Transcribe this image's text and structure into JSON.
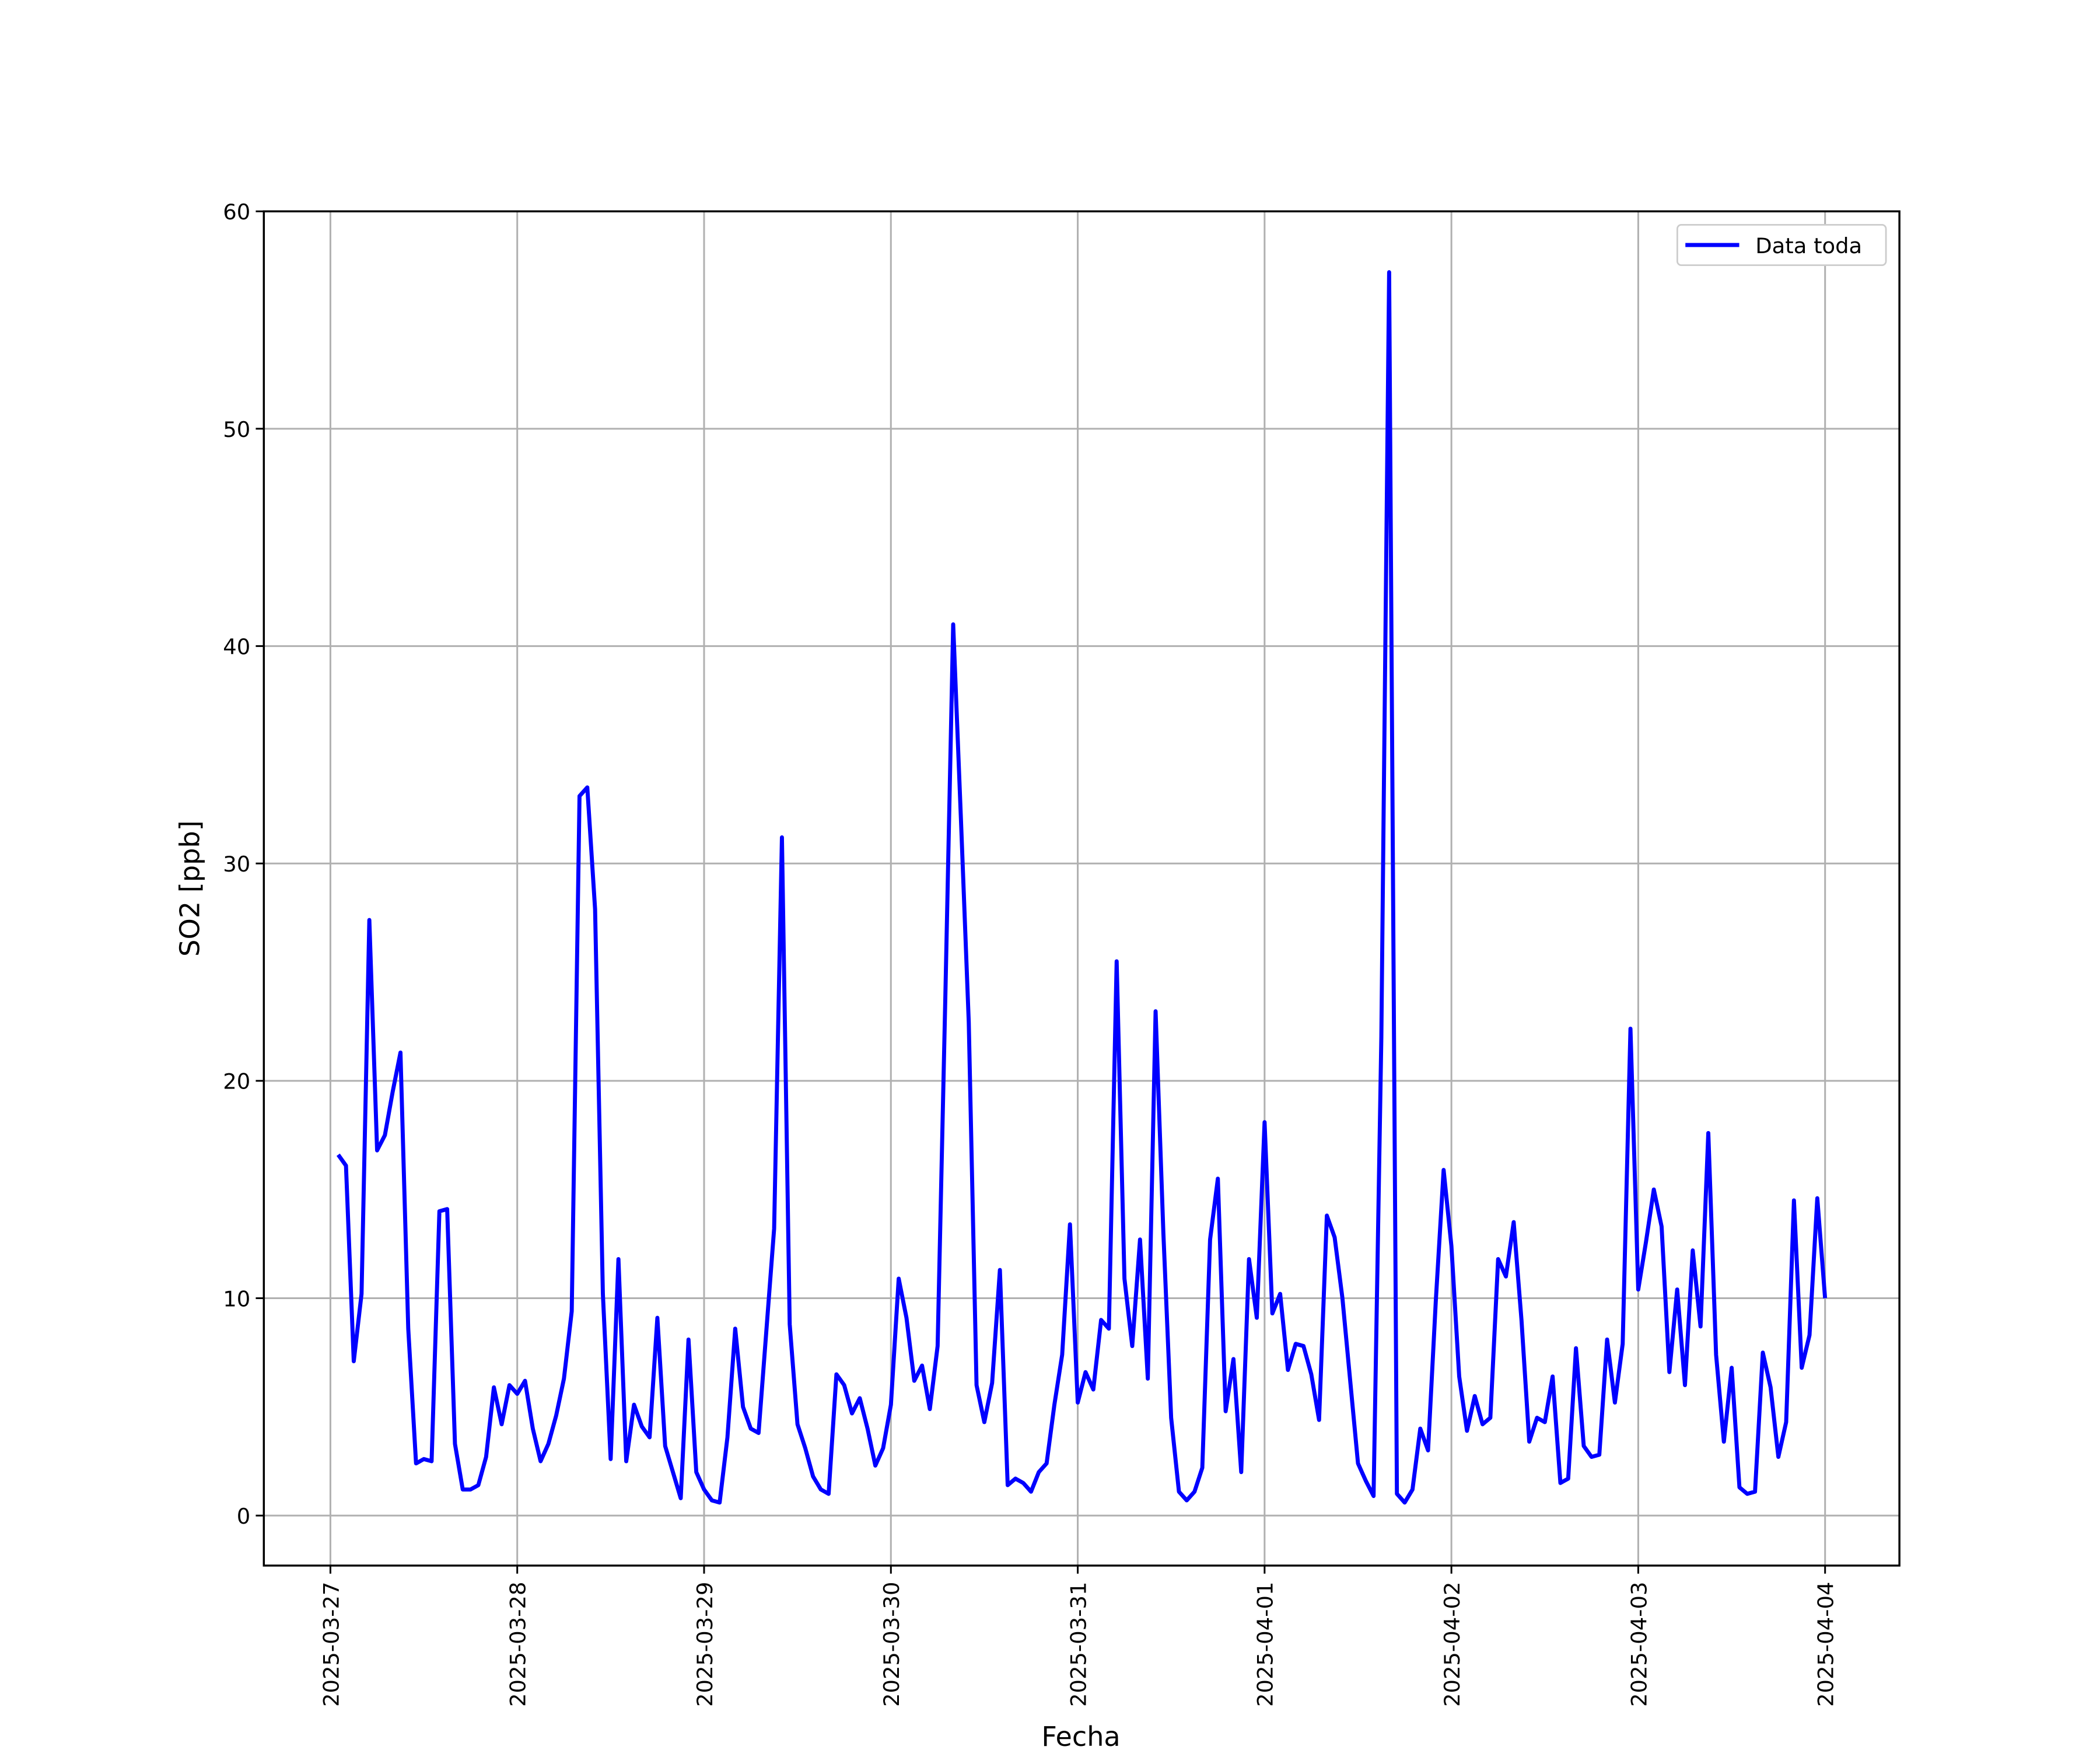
{
  "chart_data": {
    "type": "line",
    "xlabel": "Fecha",
    "ylabel": "SO2 [ppb]",
    "x": [
      "2025-03-27T01:00",
      "2025-03-27T02:00",
      "2025-03-27T03:00",
      "2025-03-27T04:00",
      "2025-03-27T05:00",
      "2025-03-27T06:00",
      "2025-03-27T07:00",
      "2025-03-27T08:00",
      "2025-03-27T09:00",
      "2025-03-27T10:00",
      "2025-03-27T11:00",
      "2025-03-27T12:00",
      "2025-03-27T13:00",
      "2025-03-27T14:00",
      "2025-03-27T15:00",
      "2025-03-27T16:00",
      "2025-03-27T17:00",
      "2025-03-27T18:00",
      "2025-03-27T19:00",
      "2025-03-27T20:00",
      "2025-03-27T21:00",
      "2025-03-27T22:00",
      "2025-03-27T23:00",
      "2025-03-28T00:00",
      "2025-03-28T01:00",
      "2025-03-28T02:00",
      "2025-03-28T03:00",
      "2025-03-28T04:00",
      "2025-03-28T05:00",
      "2025-03-28T06:00",
      "2025-03-28T07:00",
      "2025-03-28T08:00",
      "2025-03-28T09:00",
      "2025-03-28T10:00",
      "2025-03-28T11:00",
      "2025-03-28T12:00",
      "2025-03-28T13:00",
      "2025-03-28T14:00",
      "2025-03-28T15:00",
      "2025-03-28T16:00",
      "2025-03-28T17:00",
      "2025-03-28T18:00",
      "2025-03-28T19:00",
      "2025-03-28T20:00",
      "2025-03-28T21:00",
      "2025-03-28T22:00",
      "2025-03-28T23:00",
      "2025-03-29T00:00",
      "2025-03-29T01:00",
      "2025-03-29T02:00",
      "2025-03-29T03:00",
      "2025-03-29T04:00",
      "2025-03-29T05:00",
      "2025-03-29T06:00",
      "2025-03-29T07:00",
      "2025-03-29T08:00",
      "2025-03-29T09:00",
      "2025-03-29T10:00",
      "2025-03-29T11:00",
      "2025-03-29T12:00",
      "2025-03-29T13:00",
      "2025-03-29T14:00",
      "2025-03-29T15:00",
      "2025-03-29T16:00",
      "2025-03-29T17:00",
      "2025-03-29T18:00",
      "2025-03-29T19:00",
      "2025-03-29T20:00",
      "2025-03-29T21:00",
      "2025-03-29T22:00",
      "2025-03-29T23:00",
      "2025-03-30T00:00",
      "2025-03-30T01:00",
      "2025-03-30T02:00",
      "2025-03-30T03:00",
      "2025-03-30T04:00",
      "2025-03-30T05:00",
      "2025-03-30T06:00",
      "2025-03-30T07:00",
      "2025-03-30T08:00",
      "2025-03-30T09:00",
      "2025-03-30T10:00",
      "2025-03-30T11:00",
      "2025-03-30T12:00",
      "2025-03-30T13:00",
      "2025-03-30T14:00",
      "2025-03-30T15:00",
      "2025-03-30T16:00",
      "2025-03-30T17:00",
      "2025-03-30T18:00",
      "2025-03-30T19:00",
      "2025-03-30T20:00",
      "2025-03-30T21:00",
      "2025-03-30T22:00",
      "2025-03-30T23:00",
      "2025-03-31T00:00",
      "2025-03-31T01:00",
      "2025-03-31T02:00",
      "2025-03-31T03:00",
      "2025-03-31T04:00",
      "2025-03-31T05:00",
      "2025-03-31T06:00",
      "2025-03-31T07:00",
      "2025-03-31T08:00",
      "2025-03-31T09:00",
      "2025-03-31T10:00",
      "2025-03-31T11:00",
      "2025-03-31T12:00",
      "2025-03-31T13:00",
      "2025-03-31T14:00",
      "2025-03-31T15:00",
      "2025-03-31T16:00",
      "2025-03-31T17:00",
      "2025-03-31T18:00",
      "2025-03-31T19:00",
      "2025-03-31T20:00",
      "2025-03-31T21:00",
      "2025-03-31T22:00",
      "2025-03-31T23:00",
      "2025-04-01T00:00",
      "2025-04-01T01:00",
      "2025-04-01T02:00",
      "2025-04-01T03:00",
      "2025-04-01T04:00",
      "2025-04-01T05:00",
      "2025-04-01T06:00",
      "2025-04-01T07:00",
      "2025-04-01T08:00",
      "2025-04-01T09:00",
      "2025-04-01T10:00",
      "2025-04-01T11:00",
      "2025-04-01T12:00",
      "2025-04-01T13:00",
      "2025-04-01T14:00",
      "2025-04-01T15:00",
      "2025-04-01T16:00",
      "2025-04-01T17:00",
      "2025-04-01T18:00",
      "2025-04-01T19:00",
      "2025-04-01T20:00",
      "2025-04-01T21:00",
      "2025-04-01T22:00",
      "2025-04-01T23:00",
      "2025-04-02T00:00",
      "2025-04-02T01:00",
      "2025-04-02T02:00",
      "2025-04-02T03:00",
      "2025-04-02T04:00",
      "2025-04-02T05:00",
      "2025-04-02T06:00",
      "2025-04-02T07:00",
      "2025-04-02T08:00",
      "2025-04-02T09:00",
      "2025-04-02T10:00",
      "2025-04-02T11:00",
      "2025-04-02T12:00",
      "2025-04-02T13:00",
      "2025-04-02T14:00",
      "2025-04-02T15:00",
      "2025-04-02T16:00",
      "2025-04-02T17:00",
      "2025-04-02T18:00",
      "2025-04-02T19:00",
      "2025-04-02T20:00",
      "2025-04-02T21:00",
      "2025-04-02T22:00",
      "2025-04-02T23:00",
      "2025-04-03T00:00",
      "2025-04-03T01:00",
      "2025-04-03T02:00",
      "2025-04-03T03:00",
      "2025-04-03T04:00",
      "2025-04-03T05:00",
      "2025-04-03T06:00",
      "2025-04-03T07:00",
      "2025-04-03T08:00",
      "2025-04-03T09:00",
      "2025-04-03T10:00",
      "2025-04-03T11:00",
      "2025-04-03T12:00",
      "2025-04-03T13:00",
      "2025-04-03T14:00",
      "2025-04-03T15:00",
      "2025-04-03T16:00",
      "2025-04-03T17:00",
      "2025-04-03T18:00",
      "2025-04-03T19:00",
      "2025-04-03T20:00",
      "2025-04-03T21:00",
      "2025-04-03T22:00",
      "2025-04-03T23:00",
      "2025-04-04T00:00"
    ],
    "series": [
      {
        "name": "Data toda",
        "color": "#0000ff",
        "values": [
          16.6,
          16.1,
          7.1,
          10.2,
          27.4,
          16.8,
          17.5,
          19.5,
          21.3,
          8.6,
          2.4,
          2.6,
          2.5,
          14.0,
          14.1,
          3.3,
          1.2,
          1.2,
          1.4,
          2.7,
          5.9,
          4.2,
          6.0,
          5.6,
          6.2,
          4.0,
          2.5,
          3.3,
          4.6,
          6.3,
          9.4,
          33.1,
          33.5,
          27.9,
          10.2,
          2.6,
          11.8,
          2.5,
          5.1,
          4.1,
          3.6,
          9.1,
          3.2,
          2.0,
          0.8,
          8.1,
          2.0,
          1.2,
          0.7,
          0.6,
          3.6,
          8.6,
          5.0,
          4.0,
          3.8,
          8.5,
          13.2,
          31.2,
          8.8,
          4.2,
          3.1,
          1.8,
          1.2,
          1.0,
          6.5,
          6.0,
          4.7,
          5.4,
          4.0,
          2.3,
          3.1,
          5.1,
          10.9,
          9.1,
          6.2,
          6.9,
          4.9,
          7.8,
          24.0,
          41.0,
          32.0,
          22.7,
          6.0,
          4.3,
          6.1,
          11.3,
          1.4,
          1.7,
          1.5,
          1.1,
          2.0,
          2.4,
          5.1,
          7.4,
          13.4,
          5.2,
          6.6,
          5.8,
          9.0,
          8.6,
          25.5,
          10.9,
          7.8,
          12.7,
          6.3,
          23.2,
          13.0,
          4.5,
          1.1,
          0.7,
          1.1,
          2.2,
          12.7,
          15.5,
          4.8,
          7.2,
          2.0,
          11.8,
          9.1,
          18.1,
          9.3,
          10.2,
          6.7,
          7.9,
          7.8,
          6.5,
          4.4,
          13.8,
          12.8,
          10.0,
          6.2,
          2.4,
          1.6,
          0.9,
          22.0,
          57.2,
          1.0,
          0.6,
          1.2,
          4.0,
          3.0,
          9.9,
          15.9,
          12.4,
          6.4,
          3.9,
          5.5,
          4.2,
          4.5,
          11.8,
          11.0,
          13.5,
          9.0,
          3.4,
          4.5,
          4.3,
          6.4,
          1.5,
          1.7,
          7.7,
          3.2,
          2.7,
          2.8,
          8.1,
          5.2,
          7.9,
          22.4,
          10.4,
          12.6,
          15.0,
          13.3,
          6.6,
          10.4,
          6.0,
          12.2,
          8.7,
          17.6,
          7.4,
          3.4,
          6.8,
          1.3,
          1.0,
          1.1,
          7.5,
          5.9,
          2.7,
          4.3,
          14.5,
          6.8,
          8.3,
          14.6,
          10.0
        ]
      }
    ],
    "xlim": [
      "2025-03-26T15:27",
      "2025-04-04T09:33"
    ],
    "xticks": [
      "2025-03-27",
      "2025-03-28",
      "2025-03-29",
      "2025-03-30",
      "2025-03-31",
      "2025-04-01",
      "2025-04-02",
      "2025-04-03",
      "2025-04-04"
    ],
    "ylim": [
      -2.3,
      60
    ],
    "yticks": [
      0,
      10,
      20,
      30,
      40,
      50,
      60
    ],
    "grid": true,
    "legend": "upper right"
  }
}
